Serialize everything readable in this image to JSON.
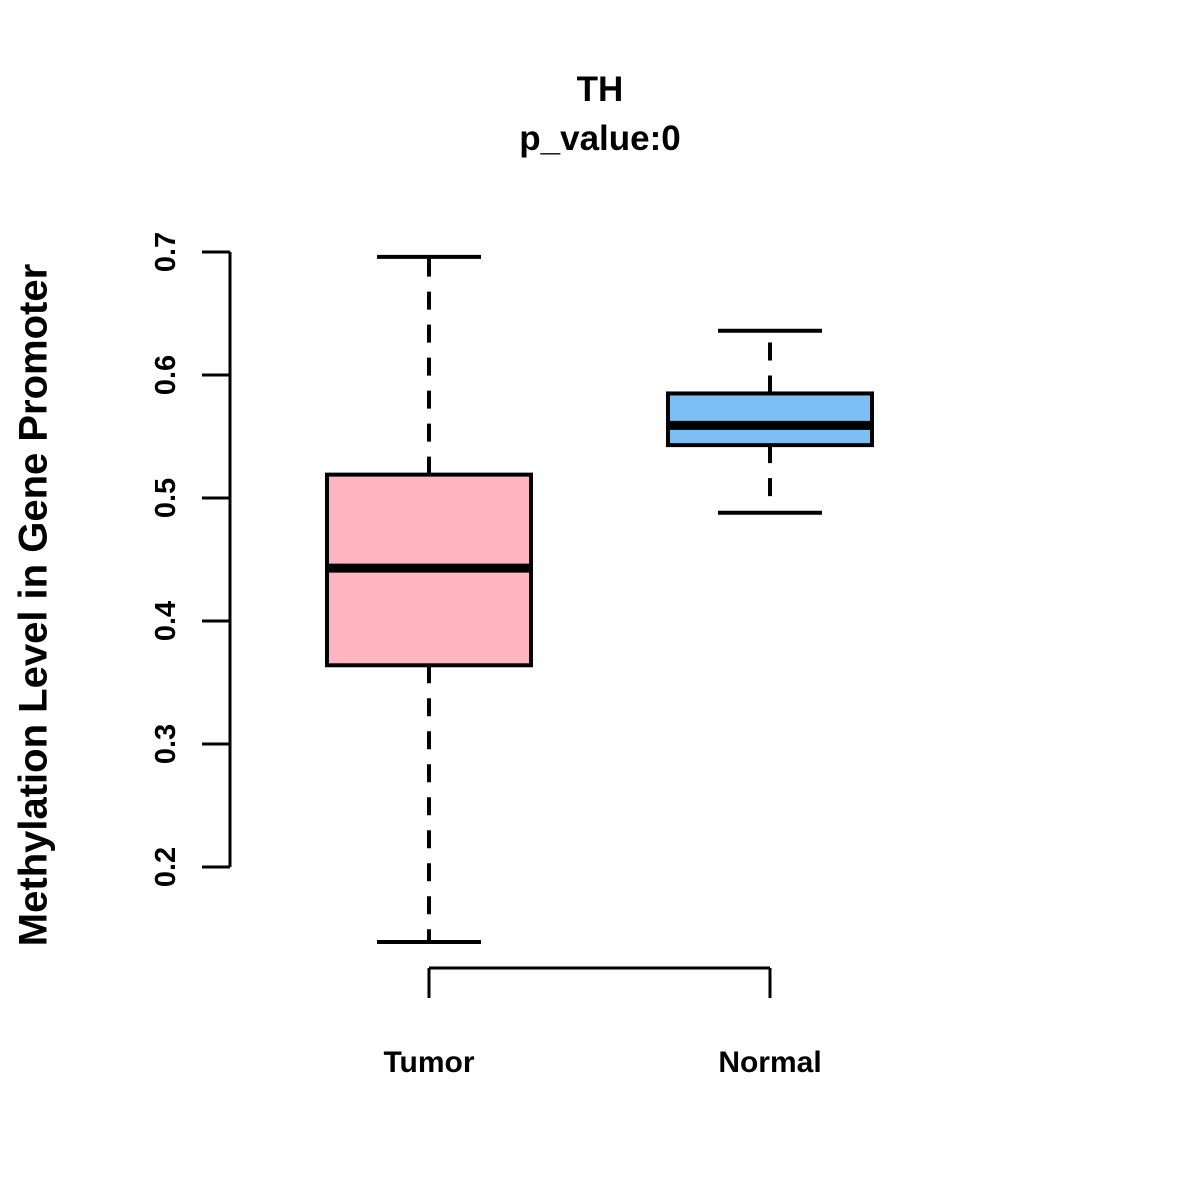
{
  "chart_data": {
    "type": "boxplot",
    "title": "TH",
    "subtitle": "p_value:0",
    "ylabel": "Methylation Level in Gene Promoter",
    "xlabel": "",
    "ylim": [
      0.2,
      0.7
    ],
    "yticks": [
      "0.2",
      "0.3",
      "0.4",
      "0.5",
      "0.6",
      "0.7"
    ],
    "grid": false,
    "legend": "none",
    "categories": [
      "Tumor",
      "Normal"
    ],
    "groups": [
      {
        "name": "Tumor",
        "fill": "#FFB6C1",
        "whisker_low": 0.139,
        "q1": 0.364,
        "median": 0.443,
        "q3": 0.519,
        "whisker_high": 0.696
      },
      {
        "name": "Normal",
        "fill": "#7BBFF5",
        "whisker_low": 0.488,
        "q1": 0.543,
        "median": 0.559,
        "q3": 0.585,
        "whisker_high": 0.636
      }
    ],
    "colors": {
      "box_border": "#000000",
      "median_line": "#000000",
      "axis": "#000000",
      "text": "#000000",
      "background": "#FFFFFF"
    }
  }
}
